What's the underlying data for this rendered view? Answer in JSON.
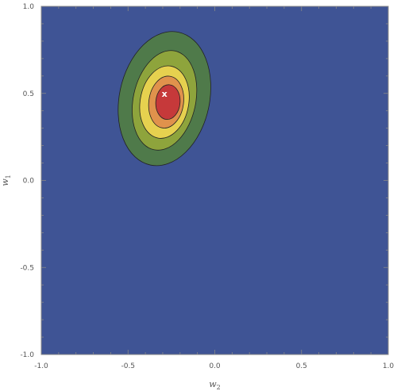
{
  "chart_data": {
    "type": "contour",
    "title": "",
    "xlabel": "w",
    "xlabel_subscript": "2",
    "ylabel": "w",
    "ylabel_subscript": "1",
    "xlim": [
      -1.0,
      1.0
    ],
    "ylim": [
      -1.0,
      1.0
    ],
    "x_ticks": [
      -1.0,
      -0.5,
      0.0,
      0.5,
      1.0
    ],
    "x_tick_labels": [
      "-1.0",
      "-0.5",
      "0.0",
      "0.5",
      "1.0"
    ],
    "y_ticks": [
      -1.0,
      -0.5,
      0.0,
      0.5,
      1.0
    ],
    "y_tick_labels": [
      "-1.0",
      "-0.5",
      "0.0",
      "0.5",
      "1.0"
    ],
    "grid": false,
    "background_color": "#3f5495",
    "contour_levels": [
      {
        "level": 1,
        "color": "#4f7a4a",
        "center": [
          -0.29,
          0.47
        ],
        "semi_axis_w2": 0.26,
        "semi_axis_w1": 0.39,
        "tilt_deg": 12
      },
      {
        "level": 2,
        "color": "#8ea43c",
        "center": [
          -0.29,
          0.46
        ],
        "semi_axis_w2": 0.18,
        "semi_axis_w1": 0.29,
        "tilt_deg": 12
      },
      {
        "level": 3,
        "color": "#e6d14f",
        "center": [
          -0.29,
          0.45
        ],
        "semi_axis_w2": 0.14,
        "semi_axis_w1": 0.21,
        "tilt_deg": 10
      },
      {
        "level": 4,
        "color": "#e0924c",
        "center": [
          -0.28,
          0.45
        ],
        "semi_axis_w2": 0.1,
        "semi_axis_w1": 0.15,
        "tilt_deg": 8
      },
      {
        "level": 5,
        "color": "#c6393a",
        "center": [
          -0.27,
          0.45
        ],
        "semi_axis_w2": 0.07,
        "semi_axis_w1": 0.1,
        "tilt_deg": 5
      }
    ],
    "marker": {
      "label": "x",
      "w2": -0.29,
      "w1": 0.5
    }
  }
}
